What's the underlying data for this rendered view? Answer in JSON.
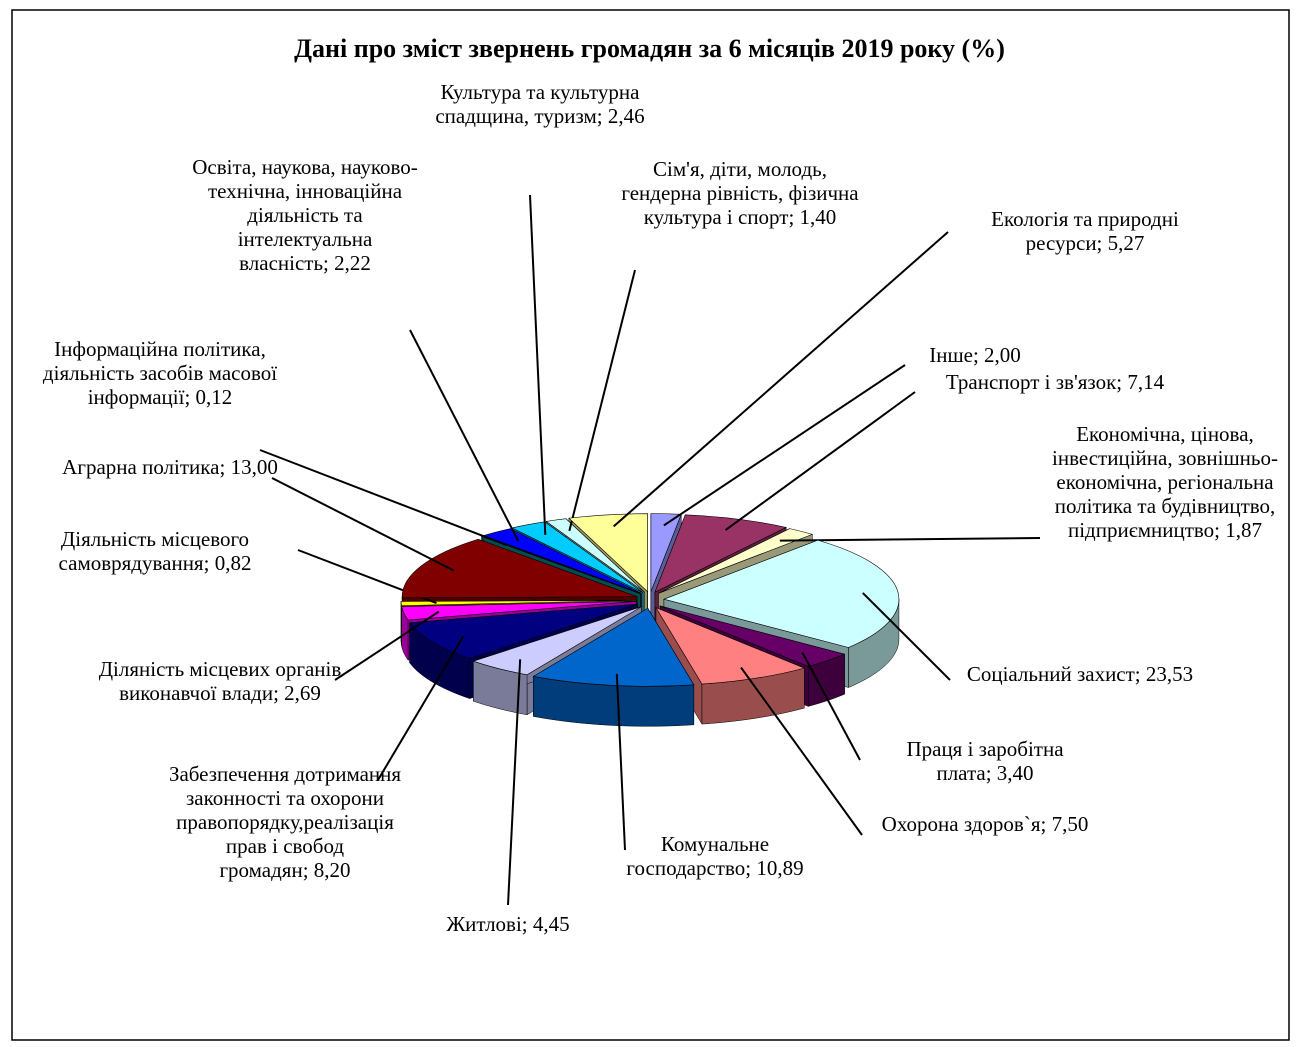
{
  "chart_data": {
    "type": "pie3d",
    "title": "Дані про зміст звернень громадян за 6 місяців 2019 року (%)",
    "categories": [
      "Інше;",
      "Транспорт і зв'язок;",
      "Економічна, цінова, інвестиційна, зовнішньо-економічна, регіональна політика та будівництво, підприємництво;",
      "Соціальний захист;",
      "Праця і заробітна плата;",
      "Охорона здоров`я;",
      "Комунальне господарство;",
      "Житлові;",
      "Забезпечення дотримання законності та охорони правопорядку,реалізація прав і свобод громадян;",
      "Діляність місцевих органів виконавчої влади;",
      "Діяльність місцевого самоврядування;",
      "Аграрна політика;",
      "Інформаційна політика, діяльність засобів масової інформації;",
      "Освіта, наукова, науково-технічна, інноваційна діяльність та інтелектуальна власність;",
      "Культура та культурна спадщина, туризм;",
      "Сім'я, діти, молодь, гендерна рівність, фізична культура і спорт;",
      "Екологія та природні ресурси;"
    ],
    "values": [
      2.0,
      7.14,
      1.87,
      23.53,
      3.4,
      7.5,
      10.89,
      4.45,
      8.2,
      2.69,
      0.82,
      13.0,
      0.12,
      2.22,
      2.46,
      1.4,
      5.27
    ],
    "value_labels": [
      "2,00",
      "7,14",
      "1,87",
      "23,53",
      "3,40",
      "7,50",
      "10,89",
      "4,45",
      "8,20",
      "2,69",
      "0,82",
      "13,00",
      "0,12",
      "2,22",
      "2,46",
      "1,40",
      "5,27"
    ],
    "colors": [
      "#9999ff",
      "#993366",
      "#ffffcc",
      "#ccffff",
      "#660066",
      "#ff8080",
      "#0066cc",
      "#ccccff",
      "#000080",
      "#ff00ff",
      "#ffff00",
      "#800000",
      "#008080",
      "#0000ff",
      "#00ccff",
      "#ccffff",
      "#ffff99"
    ]
  }
}
